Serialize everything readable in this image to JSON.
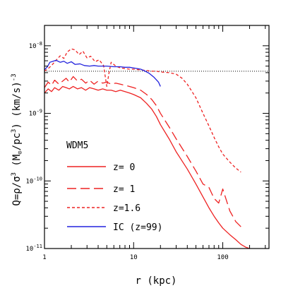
{
  "chart_data": {
    "type": "line",
    "xlabel": "r (kpc)",
    "ylabel": "Q=ρ/σ³ (M⊙/pc³) (km/s)⁻³",
    "ylabel_parts": {
      "q": "Q=ρ/σ",
      "q_exp": "3",
      "open": " (M",
      "sun": "⊙",
      "pc": "/pc",
      "pc_exp": "3",
      "mid": ") (km/s)",
      "tail_exp": "-3"
    },
    "xscale": "log",
    "yscale": "log",
    "xlim": [
      1,
      330
    ],
    "ylim": [
      1e-11,
      2e-08
    ],
    "x_ticks": [
      {
        "value": 1,
        "label": "1"
      },
      {
        "value": 10,
        "label": "10"
      },
      {
        "value": 100,
        "label": "100"
      }
    ],
    "y_ticks": [
      {
        "value": 1e-11,
        "mant": "10",
        "exp": "-11"
      },
      {
        "value": 1e-10,
        "mant": "10",
        "exp": "-10"
      },
      {
        "value": 1e-09,
        "mant": "10",
        "exp": "-9"
      },
      {
        "value": 1e-08,
        "mant": "10",
        "exp": "-8"
      }
    ],
    "panel_label": "WDM5",
    "reference_line": {
      "y": 4.2e-09,
      "style": "dotted",
      "color": "#000000"
    },
    "legend_placement": "lower-left",
    "series": [
      {
        "name": "z= 0",
        "color": "#ee2222",
        "dash": "solid",
        "x": [
          1.0,
          1.1,
          1.2,
          1.3,
          1.45,
          1.6,
          1.75,
          1.9,
          2.1,
          2.35,
          2.6,
          2.9,
          3.2,
          3.6,
          4.0,
          4.5,
          5.0,
          5.6,
          6.3,
          7.1,
          8.0,
          9.0,
          10.0,
          12.0,
          14.0,
          16.0,
          18.0,
          20.0,
          25.0,
          30.0,
          40.0,
          50.0,
          60.0,
          70.0,
          80.0,
          90.0,
          100.0,
          120.0,
          140.0,
          160.0,
          180.0,
          200.0
        ],
        "y": [
          2e-09,
          2.3e-09,
          2.1e-09,
          2.4e-09,
          2.2e-09,
          2.5e-09,
          2.4e-09,
          2.3e-09,
          2.5e-09,
          2.3e-09,
          2.4e-09,
          2.2e-09,
          2.4e-09,
          2.3e-09,
          2.2e-09,
          2.3e-09,
          2.2e-09,
          2.2e-09,
          2.1e-09,
          2.2e-09,
          2.1e-09,
          2e-09,
          1.9e-09,
          1.7e-09,
          1.4e-09,
          1.15e-09,
          9e-10,
          6.8e-10,
          4.2e-10,
          2.7e-10,
          1.5e-10,
          9e-11,
          5.8e-11,
          4e-11,
          3e-11,
          2.4e-11,
          2e-11,
          1.6e-11,
          1.35e-11,
          1.15e-11,
          1.05e-11,
          1e-11
        ]
      },
      {
        "name": "z= 1",
        "color": "#ee2222",
        "dash": "long",
        "x": [
          1.0,
          1.1,
          1.2,
          1.3,
          1.45,
          1.6,
          1.75,
          1.9,
          2.1,
          2.35,
          2.6,
          2.9,
          3.2,
          3.6,
          4.0,
          4.5,
          5.0,
          5.6,
          6.3,
          7.1,
          8.0,
          9.0,
          10.0,
          12.0,
          14.0,
          16.0,
          18.0,
          20.0,
          25.0,
          30.0,
          40.0,
          50.0,
          60.0,
          70.0,
          80.0,
          90.0,
          100.0,
          120.0,
          140.0,
          160.0
        ],
        "y": [
          2.4e-09,
          2.9e-09,
          2.6e-09,
          3.1e-09,
          2.7e-09,
          3e-09,
          3.3e-09,
          2.9e-09,
          3.5e-09,
          3e-09,
          3.2e-09,
          2.8e-09,
          3.1e-09,
          2.7e-09,
          3e-09,
          2.8e-09,
          2.9e-09,
          2.7e-09,
          2.8e-09,
          2.7e-09,
          2.6e-09,
          2.5e-09,
          2.4e-09,
          2.2e-09,
          1.9e-09,
          1.6e-09,
          1.3e-09,
          1e-09,
          6.3e-10,
          4.2e-10,
          2.3e-10,
          1.4e-10,
          9e-11,
          8e-11,
          5.5e-11,
          4.7e-11,
          7.6e-11,
          3.6e-11,
          2.5e-11,
          2.1e-11
        ]
      },
      {
        "name": "z=1.6",
        "color": "#ee2222",
        "dash": "short",
        "x": [
          1.0,
          1.1,
          1.2,
          1.35,
          1.5,
          1.65,
          1.8,
          2.0,
          2.2,
          2.45,
          2.7,
          3.0,
          3.3,
          3.7,
          4.1,
          4.6,
          5.0,
          5.3,
          5.6,
          6.3,
          7.1,
          8.0,
          9.0,
          10.0,
          12.0,
          14.0,
          16.0,
          18.0,
          20.0,
          25.0,
          30.0,
          35.0,
          40.0,
          50.0,
          60.0,
          70.0,
          80.0,
          90.0,
          100.0,
          120.0,
          140.0,
          160.0
        ],
        "y": [
          4.2e-09,
          4.6e-09,
          5.1e-09,
          6.1e-09,
          7.1e-09,
          6.5e-09,
          8.1e-09,
          9e-09,
          8.7e-09,
          7.4e-09,
          8.3e-09,
          6.6e-09,
          7e-09,
          5.8e-09,
          6.2e-09,
          5.1e-09,
          2.5e-09,
          4e-09,
          5.7e-09,
          5e-09,
          4.7e-09,
          4.6e-09,
          4.5e-09,
          4.5e-09,
          4.4e-09,
          4.3e-09,
          4.2e-09,
          4.2e-09,
          4.1e-09,
          4e-09,
          3.8e-09,
          3.3e-09,
          2.7e-09,
          1.7e-09,
          1e-09,
          6.5e-10,
          4.4e-10,
          3.2e-10,
          2.5e-10,
          1.9e-10,
          1.55e-10,
          1.35e-10
        ]
      },
      {
        "name": "IC (z=99)",
        "color": "#2222dd",
        "dash": "solid",
        "x": [
          1.0,
          1.08,
          1.15,
          1.25,
          1.35,
          1.5,
          1.65,
          1.8,
          2.0,
          2.2,
          2.5,
          2.8,
          3.2,
          3.6,
          4.0,
          4.5,
          5.0,
          6.0,
          7.0,
          8.0,
          9.0,
          10.0,
          11.0,
          12.0,
          13.5,
          15.0,
          17.0,
          19.0,
          20.0
        ],
        "y": [
          4.4e-09,
          4.9e-09,
          5.7e-09,
          5.9e-09,
          6.1e-09,
          5.7e-09,
          5.9e-09,
          5.5e-09,
          5.8e-09,
          5.3e-09,
          5.4e-09,
          5.1e-09,
          5e-09,
          5.1e-09,
          5e-09,
          5e-09,
          5e-09,
          4.9e-09,
          4.9e-09,
          4.8e-09,
          4.8e-09,
          4.7e-09,
          4.6e-09,
          4.5e-09,
          4.2e-09,
          3.9e-09,
          3.4e-09,
          2.9e-09,
          2.5e-09
        ]
      }
    ]
  },
  "legend_labels": {
    "z0": "z= 0",
    "z1": "z= 1",
    "z16": "z=1.6",
    "ic": "IC (z=99)"
  }
}
